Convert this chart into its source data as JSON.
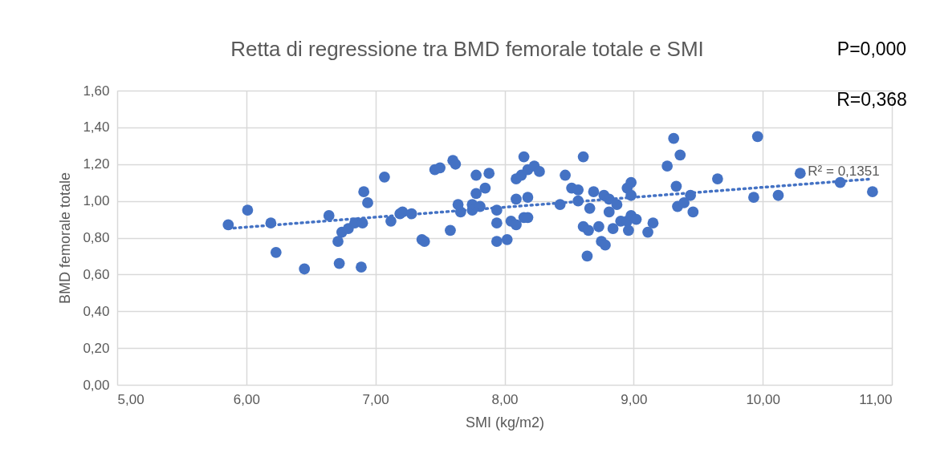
{
  "chart_data": {
    "type": "scatter",
    "title": "Retta di regressione tra BMD femorale totale e SMI",
    "xlabel": "SMI (kg/m2)",
    "ylabel": "BMD femorale totale",
    "annotations": [
      "R² = 0,1351",
      "P=0,000",
      "R=0,368"
    ],
    "xlim": [
      5,
      11
    ],
    "xticks": [
      {
        "value": 5,
        "label": "5,00"
      },
      {
        "value": 6,
        "label": "6,00"
      },
      {
        "value": 7,
        "label": "7,00"
      },
      {
        "value": 8,
        "label": "8,00"
      },
      {
        "value": 9,
        "label": "9,00"
      },
      {
        "value": 10,
        "label": "10,00"
      },
      {
        "value": 11,
        "label": "11,00"
      }
    ],
    "ylim": [
      0,
      1.6
    ],
    "yticks": [
      {
        "value": 0,
        "label": "0,00"
      },
      {
        "value": 0.2,
        "label": "0,20"
      },
      {
        "value": 0.4,
        "label": "0,40"
      },
      {
        "value": 0.6,
        "label": "0,60"
      },
      {
        "value": 0.8,
        "label": "0,80"
      },
      {
        "value": 1.0,
        "label": "1,00"
      },
      {
        "value": 1.2,
        "label": "1,20"
      },
      {
        "value": 1.4,
        "label": "1,40"
      },
      {
        "value": 1.6,
        "label": "1,60"
      }
    ],
    "grid": true,
    "marker": "circle",
    "series": [
      {
        "color": "#4472c4",
        "x": [
          5.86,
          6.01,
          6.19,
          6.23,
          6.45,
          6.64,
          6.74,
          6.71,
          6.72,
          6.79,
          6.84,
          6.9,
          6.89,
          6.91,
          6.94,
          7.07,
          7.12,
          7.19,
          7.21,
          7.28,
          7.36,
          7.38,
          7.46,
          7.5,
          7.6,
          7.62,
          7.58,
          7.64,
          7.66,
          7.75,
          7.75,
          7.81,
          7.78,
          7.78,
          7.88,
          7.85,
          7.94,
          7.94,
          7.94,
          8.02,
          8.05,
          8.09,
          8.15,
          8.18,
          8.09,
          8.18,
          8.09,
          8.13,
          8.15,
          8.18,
          8.23,
          8.27,
          8.43,
          8.47,
          8.52,
          8.57,
          8.57,
          8.61,
          8.66,
          8.69,
          8.61,
          8.65,
          8.73,
          8.64,
          8.75,
          8.78,
          8.77,
          8.81,
          8.81,
          8.84,
          8.87,
          8.9,
          8.95,
          8.96,
          8.95,
          8.98,
          8.98,
          8.98,
          9.02,
          9.11,
          9.15,
          9.26,
          9.31,
          9.36,
          9.33,
          9.44,
          9.34,
          9.39,
          9.46,
          9.65,
          9.93,
          9.96,
          10.12,
          10.29,
          10.6,
          10.85
        ],
        "values": [
          0.87,
          0.95,
          0.88,
          0.72,
          0.63,
          0.92,
          0.83,
          0.78,
          0.66,
          0.85,
          0.88,
          0.88,
          0.64,
          1.05,
          0.99,
          1.13,
          0.89,
          0.93,
          0.94,
          0.93,
          0.79,
          0.78,
          1.17,
          1.18,
          1.22,
          1.2,
          0.84,
          0.98,
          0.94,
          0.98,
          0.95,
          0.97,
          1.04,
          1.14,
          1.15,
          1.07,
          0.95,
          0.88,
          0.78,
          0.79,
          0.89,
          0.87,
          0.91,
          0.91,
          1.01,
          1.02,
          1.12,
          1.14,
          1.24,
          1.17,
          1.19,
          1.16,
          0.98,
          1.14,
          1.07,
          1.06,
          1.0,
          1.24,
          0.96,
          1.05,
          0.86,
          0.84,
          0.86,
          0.7,
          0.78,
          0.76,
          1.03,
          1.01,
          0.94,
          0.85,
          0.98,
          0.89,
          0.89,
          0.84,
          1.07,
          1.1,
          1.03,
          0.92,
          0.9,
          0.83,
          0.88,
          1.19,
          1.34,
          1.25,
          1.08,
          1.03,
          0.97,
          0.99,
          0.94,
          1.12,
          1.02,
          1.35,
          1.03,
          1.15,
          1.1,
          1.05
        ]
      },
      {
        "type": "line",
        "marker": "none",
        "color": "#4472c4",
        "line_style": "dotted",
        "x": [
          5.86,
          10.85
        ],
        "values": [
          0.85,
          1.12
        ]
      }
    ]
  }
}
